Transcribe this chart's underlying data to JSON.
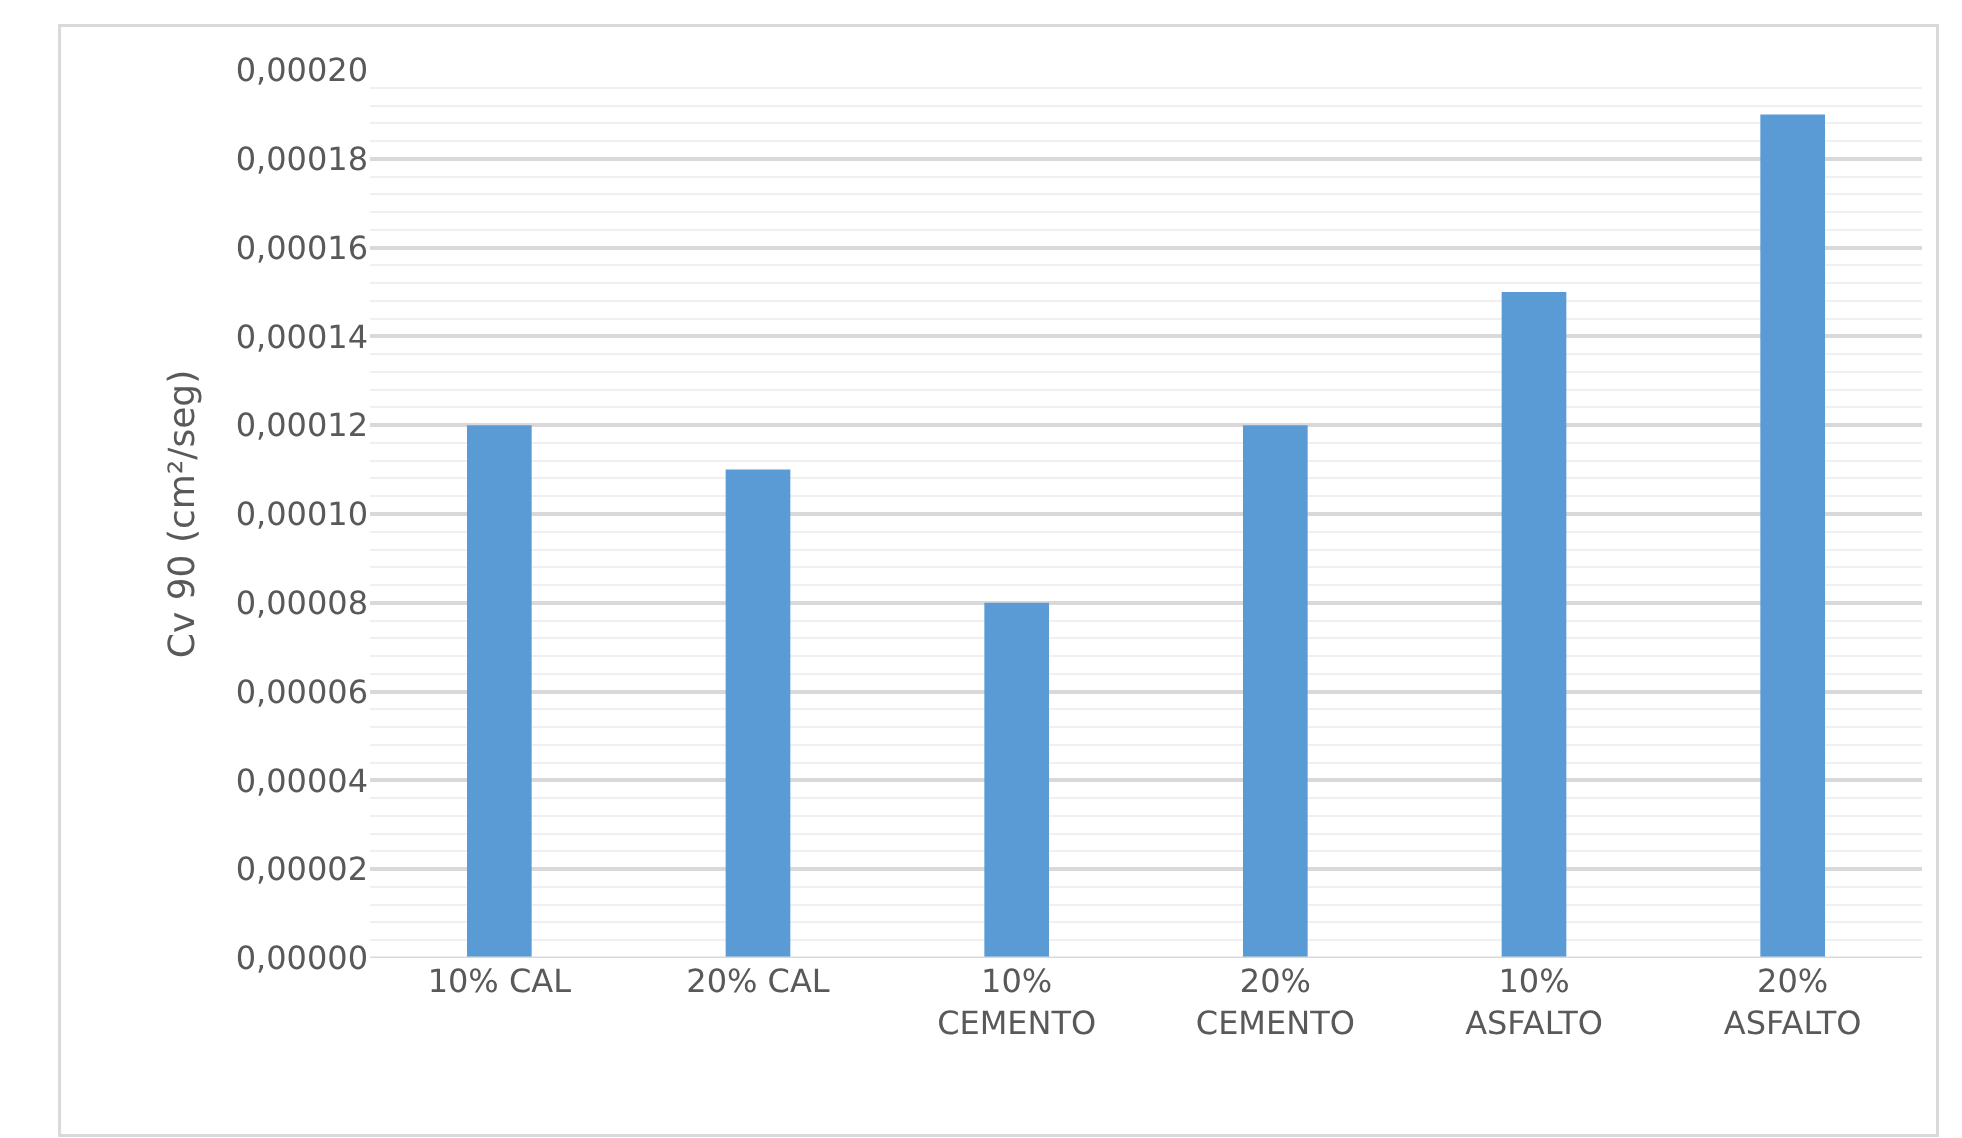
{
  "chart_data": {
    "type": "bar",
    "ylabel": "Cv 90 (cm²/seg)",
    "categories": [
      "10% CAL",
      "20% CAL",
      "10% CEMENTO",
      "20% CEMENTO",
      "10% ASFALTO",
      "20% ASFALTO"
    ],
    "values": [
      0.00012,
      0.00011,
      8e-05,
      0.00012,
      0.00015,
      0.00019
    ],
    "color": "#5b9bd5",
    "ylim": [
      0,
      0.0002
    ],
    "yticks": [
      {
        "value": 0,
        "label": "0,00000"
      },
      {
        "value": 2e-05,
        "label": "0,00002"
      },
      {
        "value": 4e-05,
        "label": "0,00004"
      },
      {
        "value": 6e-05,
        "label": "0,00006"
      },
      {
        "value": 8e-05,
        "label": "0,00008"
      },
      {
        "value": 0.0001,
        "label": "0,00010"
      },
      {
        "value": 0.00012,
        "label": "0,00012"
      },
      {
        "value": 0.00014,
        "label": "0,00014"
      },
      {
        "value": 0.00016,
        "label": "0,00016"
      },
      {
        "value": 0.00018,
        "label": "0,00018"
      },
      {
        "value": 0.0002,
        "label": "0,00020"
      }
    ],
    "grid": "y"
  }
}
